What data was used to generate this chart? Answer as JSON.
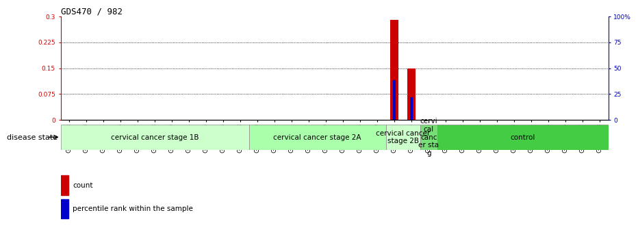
{
  "title": "GDS470 / 982",
  "samples": [
    "GSM7828",
    "GSM7830",
    "GSM7834",
    "GSM7836",
    "GSM7837",
    "GSM7838",
    "GSM7840",
    "GSM7854",
    "GSM7855",
    "GSM7856",
    "GSM7858",
    "GSM7820",
    "GSM7821",
    "GSM7824",
    "GSM7827",
    "GSM7829",
    "GSM7831",
    "GSM7835",
    "GSM7839",
    "GSM7822",
    "GSM7823",
    "GSM7825",
    "GSM7857",
    "GSM7832",
    "GSM7841",
    "GSM7842",
    "GSM7843",
    "GSM7844",
    "GSM7845",
    "GSM7846",
    "GSM7847",
    "GSM7848"
  ],
  "count_values": [
    0,
    0,
    0,
    0,
    0,
    0,
    0,
    0,
    0,
    0,
    0,
    0,
    0,
    0,
    0,
    0,
    0,
    0,
    0,
    0.29,
    0.15,
    0,
    0,
    0,
    0,
    0,
    0,
    0,
    0,
    0,
    0,
    0
  ],
  "percentile_values": [
    0,
    0,
    0,
    0,
    0,
    0,
    0,
    0,
    0,
    0,
    0,
    0,
    0,
    0,
    0,
    0,
    0,
    0,
    0,
    0.115,
    0.065,
    0,
    0,
    0,
    0,
    0,
    0,
    0,
    0,
    0,
    0,
    0
  ],
  "ylim_left": [
    0,
    0.3
  ],
  "ylim_right": [
    0,
    100
  ],
  "left_yticks": [
    0,
    0.075,
    0.15,
    0.225,
    0.3
  ],
  "right_yticks": [
    0,
    25,
    50,
    75,
    100
  ],
  "grid_values": [
    0.075,
    0.15,
    0.225
  ],
  "disease_groups": [
    {
      "label": "cervical cancer stage 1B",
      "start": 0,
      "end": 11,
      "color": "#ccffcc"
    },
    {
      "label": "cervical cancer stage 2A",
      "start": 11,
      "end": 19,
      "color": "#aaffaa"
    },
    {
      "label": "cervical cancer\nstage 2B",
      "start": 19,
      "end": 21,
      "color": "#ccffcc"
    },
    {
      "label": "cervi\ncal\ncanc\ner sta\ng",
      "start": 21,
      "end": 22,
      "color": "#77dd77"
    },
    {
      "label": "control",
      "start": 22,
      "end": 32,
      "color": "#44cc44"
    }
  ],
  "bar_color_count": "#cc0000",
  "bar_color_percentile": "#0000cc",
  "bar_width": 0.5,
  "left_axis_color": "#cc0000",
  "right_axis_color": "#0000bb",
  "title_fontsize": 9,
  "tick_fontsize": 6.5,
  "disease_fontsize": 7.5,
  "legend_fontsize": 7.5
}
